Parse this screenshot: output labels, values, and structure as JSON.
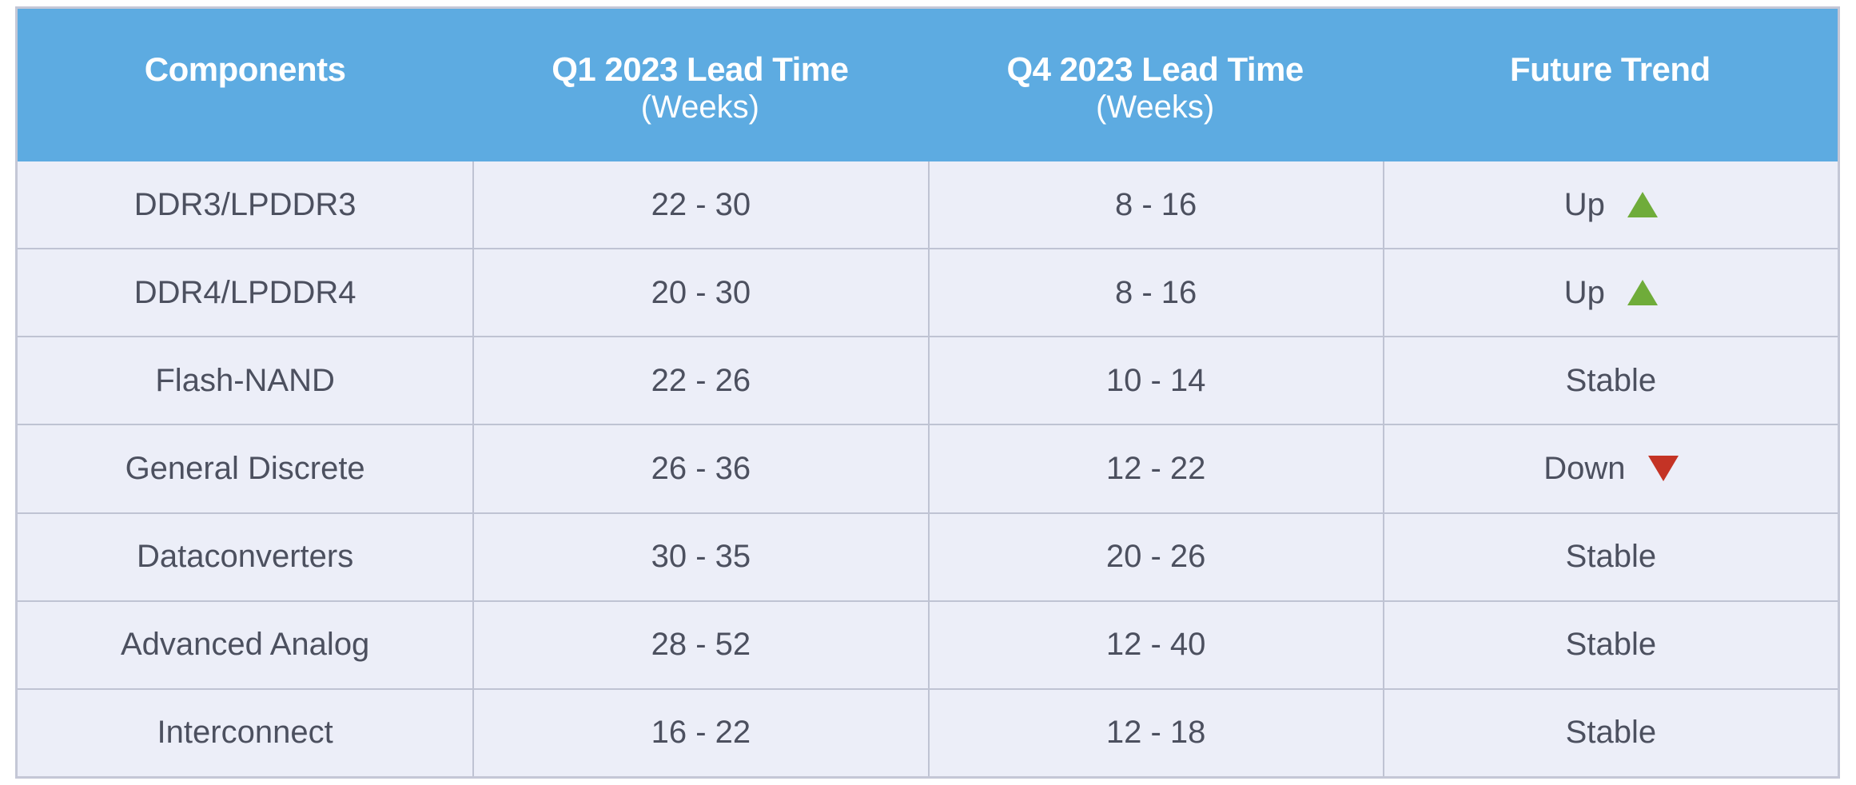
{
  "table": {
    "headers": [
      {
        "main": "Components",
        "sub": ""
      },
      {
        "main": "Q1 2023 Lead Time",
        "sub": "(Weeks)"
      },
      {
        "main": "Q4 2023 Lead Time",
        "sub": "(Weeks)"
      },
      {
        "main": "Future Trend",
        "sub": ""
      }
    ],
    "rows": [
      {
        "component": "DDR3/LPDDR3",
        "q1": "22 - 30",
        "q4": "8 - 16",
        "trend": "Up",
        "trend_icon": "up-triangle-icon"
      },
      {
        "component": "DDR4/LPDDR4",
        "q1": "20 - 30",
        "q4": "8 - 16",
        "trend": "Up",
        "trend_icon": "up-triangle-icon"
      },
      {
        "component": "Flash-NAND",
        "q1": "22 - 26",
        "q4": "10 - 14",
        "trend": "Stable",
        "trend_icon": ""
      },
      {
        "component": "General Discrete",
        "q1": "26 - 36",
        "q4": "12 - 22",
        "trend": "Down",
        "trend_icon": "down-triangle-icon"
      },
      {
        "component": "Dataconverters",
        "q1": "30 - 35",
        "q4": "20 - 26",
        "trend": "Stable",
        "trend_icon": ""
      },
      {
        "component": "Advanced Analog",
        "q1": "28 - 52",
        "q4": "12 - 40",
        "trend": "Stable",
        "trend_icon": ""
      },
      {
        "component": "Interconnect",
        "q1": "16 - 22",
        "q4": "12 - 18",
        "trend": "Stable",
        "trend_icon": ""
      }
    ]
  },
  "colors": {
    "header_bg": "#5dabe1",
    "body_bg": "#eceef8",
    "up": "#6fac3a",
    "down": "#c43325"
  }
}
